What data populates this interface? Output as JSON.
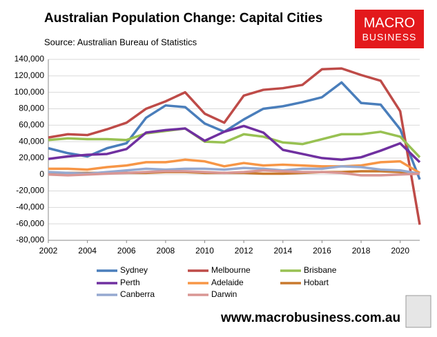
{
  "chart_data": {
    "type": "line",
    "title": "Australian Population Change: Capital Cities",
    "subtitle": "Source: Australian Bureau of Statistics",
    "x": [
      2002,
      2003,
      2004,
      2005,
      2006,
      2007,
      2008,
      2009,
      2010,
      2011,
      2012,
      2013,
      2014,
      2015,
      2016,
      2017,
      2018,
      2019,
      2020,
      2021
    ],
    "xlim": [
      2002,
      2021
    ],
    "xticks": [
      2002,
      2004,
      2006,
      2008,
      2010,
      2012,
      2014,
      2016,
      2018,
      2020
    ],
    "ylim": [
      -80000,
      140000
    ],
    "yticks": [
      {
        "value": -80000,
        "label": "-80,000"
      },
      {
        "value": -60000,
        "label": "-60,000"
      },
      {
        "value": -40000,
        "label": "-40,000"
      },
      {
        "value": -20000,
        "label": "-20,000"
      },
      0,
      {
        "value": 20000,
        "label": "20,000"
      },
      {
        "value": 40000,
        "label": "40,000"
      },
      {
        "value": 60000,
        "label": "60,000"
      },
      {
        "value": 80000,
        "label": "80,000"
      },
      {
        "value": 100000,
        "label": "100,000"
      },
      {
        "value": 120000,
        "label": "120,000"
      },
      {
        "value": 140000,
        "label": "140,000"
      }
    ],
    "grid": true,
    "series": [
      {
        "name": "Sydney",
        "color": "#4a7ebb",
        "values": [
          32000,
          26000,
          22000,
          32000,
          38000,
          69000,
          84000,
          82000,
          62000,
          52000,
          67000,
          80000,
          83000,
          88000,
          94000,
          112000,
          87000,
          85000,
          55000,
          -6000
        ]
      },
      {
        "name": "Melbourne",
        "color": "#be4b48",
        "values": [
          45000,
          49000,
          48000,
          55000,
          63000,
          80000,
          89000,
          100000,
          74000,
          63000,
          96000,
          103000,
          105000,
          109000,
          128000,
          129000,
          121000,
          114000,
          77000,
          -61000
        ]
      },
      {
        "name": "Brisbane",
        "color": "#98c152",
        "values": [
          42000,
          44000,
          43000,
          43000,
          42000,
          50000,
          53000,
          56000,
          40000,
          39000,
          49000,
          46000,
          39000,
          37000,
          43000,
          49000,
          49000,
          52000,
          46000,
          21000
        ]
      },
      {
        "name": "Perth",
        "color": "#7030a0",
        "values": [
          19000,
          22000,
          24000,
          25000,
          31000,
          51000,
          54000,
          56000,
          41000,
          52000,
          59000,
          51000,
          30000,
          25000,
          20000,
          18000,
          21000,
          29000,
          38000,
          15000
        ]
      },
      {
        "name": "Adelaide",
        "color": "#f79646",
        "values": [
          7000,
          7000,
          6000,
          9000,
          11000,
          15000,
          15000,
          18000,
          16000,
          10000,
          14000,
          11000,
          12000,
          11000,
          10000,
          10000,
          11000,
          15000,
          16000,
          2000
        ]
      },
      {
        "name": "Hobart",
        "color": "#c97a2e",
        "values": [
          2000,
          2000,
          2000,
          2000,
          2000,
          2000,
          3000,
          3000,
          2000,
          2000,
          2000,
          1000,
          1000,
          2000,
          3000,
          3000,
          4000,
          4000,
          3000,
          1000
        ]
      },
      {
        "name": "Canberra",
        "color": "#95a9d0",
        "values": [
          3000,
          2000,
          1000,
          3000,
          5000,
          7000,
          6000,
          7000,
          7000,
          6000,
          8000,
          7000,
          5000,
          7000,
          7000,
          10000,
          9000,
          6000,
          5000,
          1000
        ]
      },
      {
        "name": "Darwin",
        "color": "#d99694",
        "values": [
          0,
          -1000,
          0,
          1000,
          2000,
          3000,
          4000,
          4000,
          3000,
          2000,
          3000,
          5000,
          4000,
          3000,
          3000,
          2000,
          -1000,
          -1000,
          0,
          1000
        ]
      }
    ]
  },
  "logo": {
    "line1": "MACRO",
    "line2": "BUSINESS"
  },
  "footer": "www.macrobusiness.com.au"
}
